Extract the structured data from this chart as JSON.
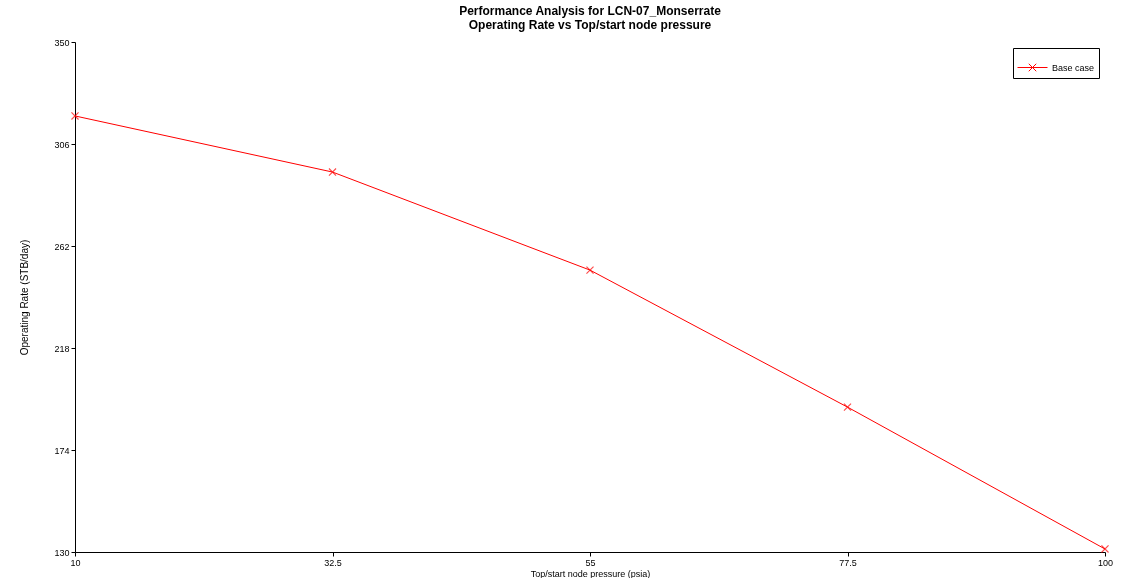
{
  "chart_data": {
    "type": "line",
    "title": [
      "Performance Analysis for LCN-07_Monserrate",
      "Operating Rate vs Top/start node pressure"
    ],
    "xlabel": "Top/start node pressure (psia)",
    "ylabel": "Operating Rate (STB/day)",
    "x": [
      10,
      32.5,
      55,
      77.5,
      100
    ],
    "series": [
      {
        "name": "Base case",
        "color": "#ff0000",
        "values": [
          318.1,
          293.9,
          251.6,
          192.5,
          131.3
        ]
      }
    ],
    "xlim": [
      10,
      100
    ],
    "xticks": [
      10,
      32.5,
      55,
      77.5,
      100
    ],
    "ylim": [
      130,
      350
    ],
    "yticks": [
      130,
      174,
      218,
      262,
      306,
      350
    ],
    "grid": false,
    "legend": "top right",
    "marker": "cross",
    "line_style": "solid"
  }
}
